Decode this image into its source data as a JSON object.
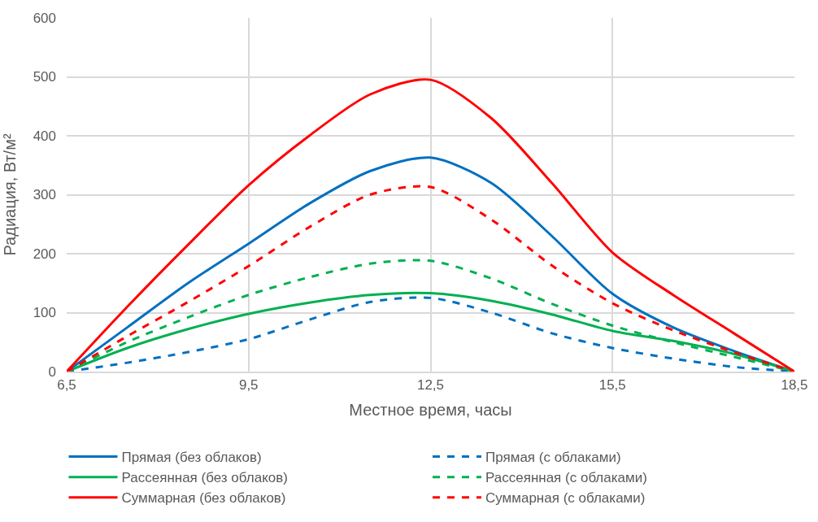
{
  "chart_data": {
    "type": "line",
    "xlabel": "Местное время, часы",
    "ylabel": "Радиация, Вт/м²",
    "x": [
      6.5,
      7.5,
      8.5,
      9.5,
      10.5,
      11.5,
      12.5,
      13.5,
      14.5,
      15.5,
      16.5,
      17.5,
      18.5
    ],
    "series": [
      {
        "name": "Прямая (без облаков)",
        "color": "#0070c0",
        "line_style": "solid",
        "values": [
          0,
          75,
          150,
          217,
          285,
          340,
          363,
          320,
          230,
          132,
          75,
          35,
          0
        ]
      },
      {
        "name": "Прямая (с облаками)",
        "color": "#0070c0",
        "line_style": "dashed",
        "values": [
          0,
          15,
          33,
          55,
          88,
          118,
          125,
          100,
          65,
          40,
          22,
          8,
          0
        ]
      },
      {
        "name": "Рассеянная (без облаков)",
        "color": "#00b050",
        "line_style": "solid",
        "values": [
          0,
          40,
          72,
          98,
          117,
          130,
          133,
          120,
          97,
          69,
          52,
          30,
          0
        ]
      },
      {
        "name": "Рассеянная (с облаками)",
        "color": "#00b050",
        "line_style": "dashed",
        "values": [
          0,
          50,
          92,
          130,
          160,
          183,
          188,
          158,
          115,
          78,
          50,
          25,
          0
        ]
      },
      {
        "name": "Суммарная (без облаков)",
        "color": "#ff0000",
        "line_style": "solid",
        "values": [
          0,
          110,
          215,
          316,
          400,
          470,
          495,
          430,
          320,
          202,
          130,
          65,
          0
        ]
      },
      {
        "name": "Суммарная (с облаками)",
        "color": "#ff0000",
        "line_style": "dashed",
        "values": [
          0,
          60,
          118,
          179,
          245,
          300,
          313,
          258,
          180,
          116,
          70,
          33,
          0
        ]
      }
    ],
    "xlim": [
      6.5,
      18.5
    ],
    "xticks": [
      {
        "value": 6.5,
        "label": "6,5"
      },
      {
        "value": 9.5,
        "label": "9,5"
      },
      {
        "value": 12.5,
        "label": "12,5"
      },
      {
        "value": 15.5,
        "label": "15,5"
      },
      {
        "value": 18.5,
        "label": "18,5"
      }
    ],
    "ylim": [
      0,
      600
    ],
    "yticks": [
      0,
      100,
      200,
      300,
      400,
      500,
      600
    ],
    "grid": true,
    "legend": "bottom",
    "marker": "none"
  }
}
